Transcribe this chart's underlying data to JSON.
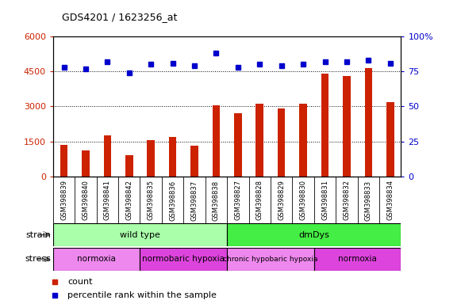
{
  "title": "GDS4201 / 1623256_at",
  "samples": [
    "GSM398839",
    "GSM398840",
    "GSM398841",
    "GSM398842",
    "GSM398835",
    "GSM398836",
    "GSM398837",
    "GSM398838",
    "GSM398827",
    "GSM398828",
    "GSM398829",
    "GSM398830",
    "GSM398831",
    "GSM398832",
    "GSM398833",
    "GSM398834"
  ],
  "counts": [
    1350,
    1100,
    1750,
    900,
    1550,
    1700,
    1300,
    3050,
    2700,
    3100,
    2900,
    3100,
    4400,
    4300,
    4650,
    3200
  ],
  "percentiles": [
    78,
    77,
    82,
    74,
    80,
    81,
    79,
    88,
    78,
    80,
    79,
    80,
    82,
    82,
    83,
    81
  ],
  "bar_color": "#cc2200",
  "dot_color": "#0000cc",
  "ylim_left": [
    0,
    6000
  ],
  "ylim_right": [
    0,
    100
  ],
  "yticks_left": [
    0,
    1500,
    3000,
    4500,
    6000
  ],
  "yticks_right": [
    0,
    25,
    50,
    75,
    100
  ],
  "strain_groups": [
    {
      "label": "wild type",
      "start": 0,
      "end": 8,
      "color": "#aaffaa"
    },
    {
      "label": "dmDys",
      "start": 8,
      "end": 16,
      "color": "#44ee44"
    }
  ],
  "stress_groups": [
    {
      "label": "normoxia",
      "start": 0,
      "end": 4,
      "color": "#ee88ee"
    },
    {
      "label": "normobaric hypoxia",
      "start": 4,
      "end": 8,
      "color": "#dd44dd"
    },
    {
      "label": "chronic hypobaric hypoxia",
      "start": 8,
      "end": 12,
      "color": "#ee88ee"
    },
    {
      "label": "normoxia",
      "start": 12,
      "end": 16,
      "color": "#dd44dd"
    }
  ],
  "legend_count_label": "count",
  "legend_pct_label": "percentile rank within the sample",
  "strain_label": "strain",
  "stress_label": "stress",
  "col_bg_color": "#dddddd",
  "plot_bg_color": "#ffffff"
}
